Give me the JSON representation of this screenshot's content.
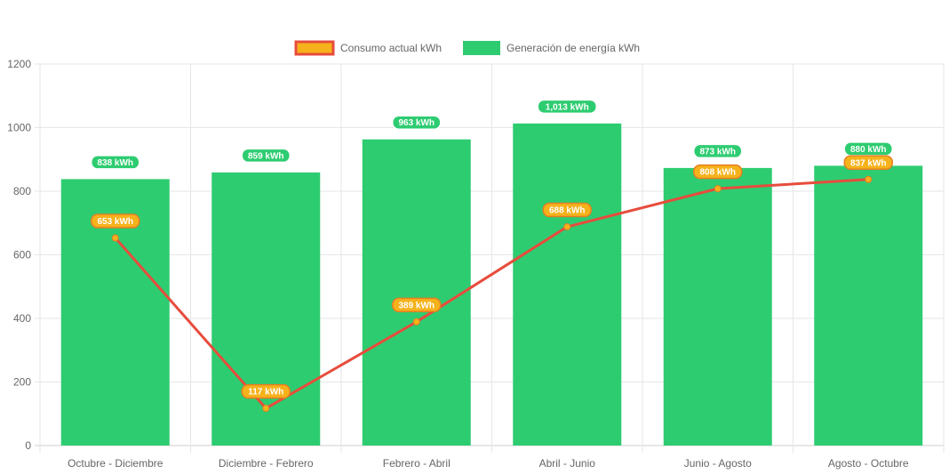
{
  "chart_data": {
    "type": "bar",
    "categories": [
      "Octubre - Diciembre",
      "Diciembre - Febrero",
      "Febrero - Abril",
      "Abril - Junio",
      "Junio - Agosto",
      "Agosto - Octubre"
    ],
    "series": [
      {
        "name": "Consumo actual kWh",
        "type": "line",
        "values": [
          653,
          117,
          389,
          688,
          808,
          837
        ],
        "labels": [
          "653 kWh",
          "117 kWh",
          "389 kWh",
          "688 kWh",
          "808 kWh",
          "837 kWh"
        ],
        "color": "#e74c3c",
        "fill": "#f6b21b"
      },
      {
        "name": "Generación de energía kWh",
        "type": "bar",
        "values": [
          838,
          859,
          963,
          1013,
          873,
          880
        ],
        "labels": [
          "838 kWh",
          "859 kWh",
          "963 kWh",
          "1,013 kWh",
          "873 kWh",
          "880 kWh"
        ],
        "color": "#2ecc71"
      }
    ],
    "yticks": [
      "0",
      "200",
      "400",
      "600",
      "800",
      "1000",
      "1200"
    ],
    "ylim": [
      0,
      1200
    ],
    "grid": true,
    "legend": "top"
  }
}
